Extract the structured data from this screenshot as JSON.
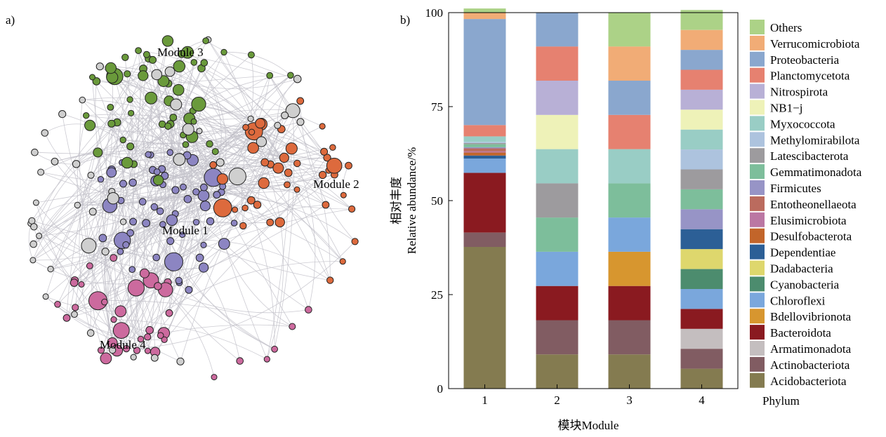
{
  "panel_a": {
    "label": "a)",
    "modules": [
      {
        "name": "Module 1",
        "color": "#8c85c2"
      },
      {
        "name": "Module 2",
        "color": "#dd6a3d"
      },
      {
        "name": "Module 3",
        "color": "#6a9a3b"
      },
      {
        "name": "Module 4",
        "color": "#cc6a9e"
      }
    ],
    "other_node_color": "#cfcfcf",
    "edge_color": "#c3c2ca"
  },
  "panel_b": {
    "label": "b)",
    "chart_data": {
      "type": "bar",
      "stacked": true,
      "categories": [
        "1",
        "2",
        "3",
        "4"
      ],
      "xlabel": "模块Module",
      "ylabel_cn": "相对丰度",
      "ylabel": "Relative abundance/%",
      "ylim": [
        0,
        100
      ],
      "yticks": [
        "0",
        "25",
        "50",
        "75",
        "100"
      ],
      "legend_title": "Phylum",
      "legend_position": "right",
      "series": [
        {
          "name": "Acidobacteriota",
          "color": "#847b50",
          "values": [
            37.7,
            9.1,
            9.1,
            5.3
          ]
        },
        {
          "name": "Actinobacteriota",
          "color": "#815c62",
          "values": [
            3.8,
            9.1,
            9.1,
            5.3
          ]
        },
        {
          "name": "Armatimonadota",
          "color": "#c4bebf",
          "values": [
            0,
            0,
            0,
            5.3
          ]
        },
        {
          "name": "Bacteroidota",
          "color": "#8a1a20",
          "values": [
            15.9,
            9.1,
            9.1,
            5.3
          ]
        },
        {
          "name": "Bdellovibrionota",
          "color": "#d7962f",
          "values": [
            0,
            0,
            9.1,
            0
          ]
        },
        {
          "name": "Chloroflexi",
          "color": "#7aa7dc",
          "values": [
            3.8,
            9.1,
            9.1,
            5.3
          ]
        },
        {
          "name": "Cyanobacteria",
          "color": "#4c8c6e",
          "values": [
            0,
            0,
            0,
            5.3
          ]
        },
        {
          "name": "Dadabacteria",
          "color": "#ded76d",
          "values": [
            0,
            0,
            0,
            5.3
          ]
        },
        {
          "name": "Dependentiae",
          "color": "#2c5f96",
          "values": [
            0.8,
            0,
            0,
            5.3
          ]
        },
        {
          "name": "Desulfobacterota",
          "color": "#c2652a",
          "values": [
            0.8,
            0,
            0,
            0
          ]
        },
        {
          "name": "Elusimicrobiota",
          "color": "#bb77a3",
          "values": [
            0.3,
            0,
            0,
            0
          ]
        },
        {
          "name": "Entotheonellaeota",
          "color": "#bb6b5e",
          "values": [
            0.8,
            0,
            0,
            0
          ]
        },
        {
          "name": "Firmicutes",
          "color": "#9794c6",
          "values": [
            0.3,
            0,
            0,
            5.3
          ]
        },
        {
          "name": "Gemmatimonadota",
          "color": "#7dbe9b",
          "values": [
            0.8,
            9.1,
            9.1,
            5.3
          ]
        },
        {
          "name": "Latescibacterota",
          "color": "#9d9b9e",
          "values": [
            0.3,
            9.1,
            0,
            5.3
          ]
        },
        {
          "name": "Methylomirabilota",
          "color": "#adc3de",
          "values": [
            0.3,
            0,
            0,
            5.3
          ]
        },
        {
          "name": "Myxococcota",
          "color": "#99cdc5",
          "values": [
            1.5,
            9.1,
            9.1,
            5.3
          ]
        },
        {
          "name": "NB1−j",
          "color": "#eef2b8",
          "values": [
            0,
            9.1,
            0,
            5.3
          ]
        },
        {
          "name": "Nitrospirota",
          "color": "#b8b0d6",
          "values": [
            0,
            9.1,
            0,
            5.3
          ]
        },
        {
          "name": "Planctomycetota",
          "color": "#e68170",
          "values": [
            3.0,
            9.1,
            9.1,
            5.3
          ]
        },
        {
          "name": "Proteobacteria",
          "color": "#8aa7ce",
          "values": [
            28.2,
            9.1,
            9.1,
            5.3
          ]
        },
        {
          "name": "Verrucomicrobiota",
          "color": "#f1ac76",
          "values": [
            1.8,
            0,
            9.1,
            5.3
          ]
        },
        {
          "name": "Others",
          "color": "#acd287",
          "values": [
            1.0,
            0,
            9.1,
            5.3
          ]
        }
      ]
    }
  }
}
